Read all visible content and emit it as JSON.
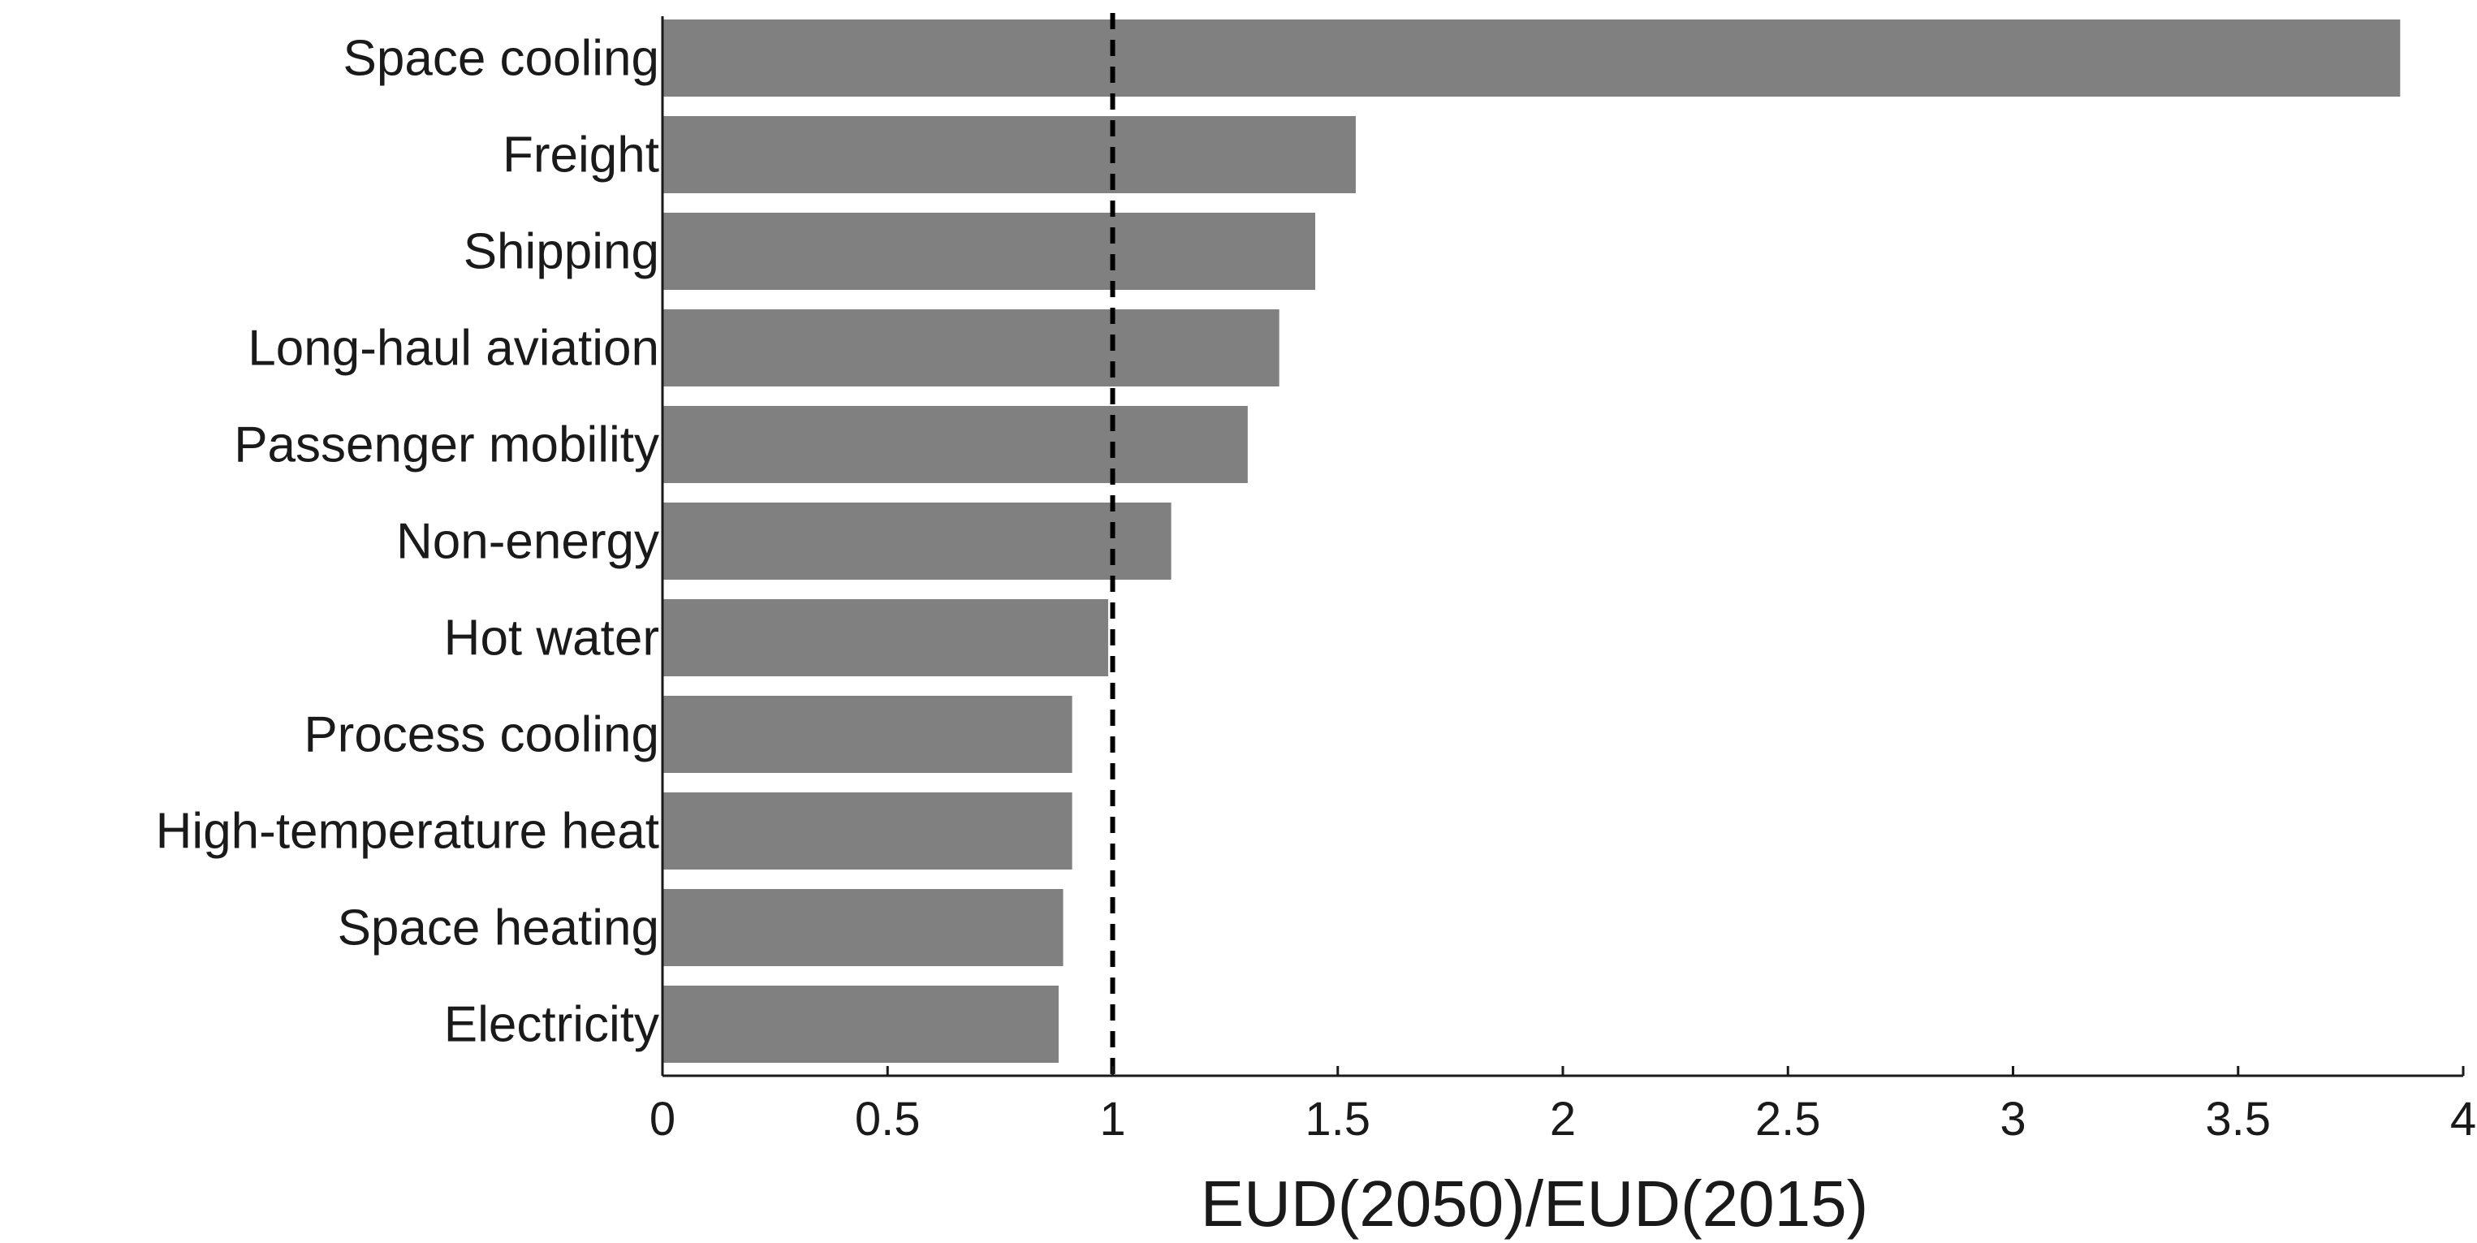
{
  "chart_data": {
    "type": "bar",
    "orientation": "horizontal",
    "categories": [
      "Space cooling",
      "Freight",
      "Shipping",
      "Long-haul aviation",
      "Passenger mobility",
      "Non-energy",
      "Hot water",
      "Process cooling",
      "High-temperature heat",
      "Space heating",
      "Electricity"
    ],
    "values": [
      3.86,
      1.54,
      1.45,
      1.37,
      1.3,
      1.13,
      0.99,
      0.91,
      0.91,
      0.89,
      0.88
    ],
    "title": "",
    "xlabel": "EUD(2050)/EUD(2015)",
    "ylabel": "",
    "xlim": [
      0,
      4
    ],
    "xticks": [
      0,
      0.5,
      1,
      1.5,
      2,
      2.5,
      3,
      3.5,
      4
    ],
    "xtick_labels": [
      "0",
      "0.5",
      "1",
      "1.5",
      "2",
      "2.5",
      "3",
      "3.5",
      "4"
    ],
    "reference_line": 1,
    "grid": false,
    "bar_color": "#808080",
    "reference_line_color": "#000000"
  }
}
